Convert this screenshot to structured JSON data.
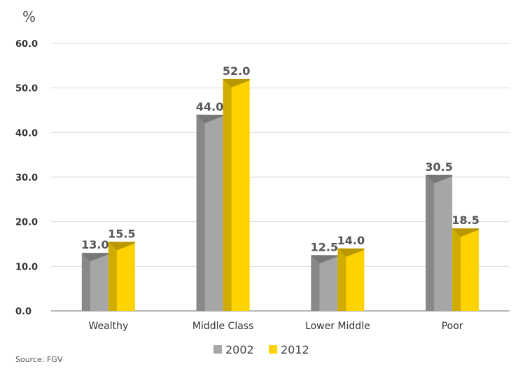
{
  "chart_data": {
    "type": "bar",
    "title": "",
    "unit_label": "%",
    "xlabel": "",
    "ylabel": "",
    "ylim": [
      0,
      60
    ],
    "yticks": [
      "0.0",
      "10.0",
      "20.0",
      "30.0",
      "40.0",
      "50.0",
      "60.0"
    ],
    "categories": [
      "Wealthy",
      "Middle Class",
      "Lower Middle",
      "Poor"
    ],
    "series": [
      {
        "name": "2002",
        "color": "#a6a6a6",
        "values": [
          13.0,
          44.0,
          12.5,
          30.5
        ],
        "labels": [
          "13.0",
          "44.0",
          "12.5",
          "30.5"
        ]
      },
      {
        "name": "2012",
        "color": "#ffd200",
        "values": [
          15.5,
          52.0,
          14.0,
          18.5
        ],
        "labels": [
          "15.5",
          "52.0",
          "14.0",
          "18.5"
        ]
      }
    ],
    "grid": true,
    "legend": "bottom"
  },
  "source": "Source: FGV"
}
